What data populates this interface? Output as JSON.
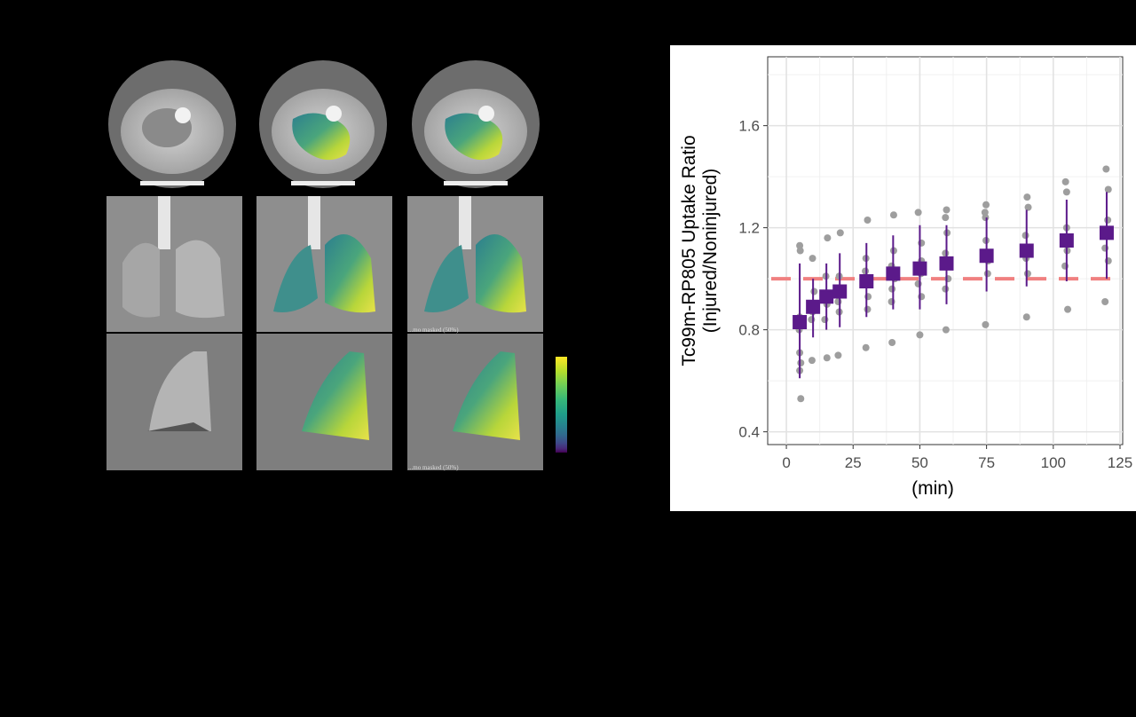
{
  "figure": {
    "mask_labels": [
      "...mo masked (50%)",
      "...mo masked (50%)"
    ],
    "colorbar_colors": [
      "#440154",
      "#3e4989",
      "#26828e",
      "#35b779",
      "#b5de2b",
      "#fde725"
    ]
  },
  "chart_data": {
    "type": "scatter",
    "title": "",
    "xlabel": "(min)",
    "ylabel_line1": "Tc99m-RP805 Uptake Ratio",
    "ylabel_line2": "(Injured/Noninjured)",
    "xlim": [
      -7,
      126
    ],
    "ylim": [
      0.35,
      1.87
    ],
    "x_ticks": [
      0,
      25,
      50,
      75,
      100,
      125
    ],
    "y_ticks": [
      0.4,
      0.8,
      1.2,
      1.6
    ],
    "y_tick_labels": [
      "0.4",
      "0.8",
      "1.2",
      "1.6"
    ],
    "reference_line": {
      "y": 1.0,
      "color": "#f08080",
      "style": "dashed"
    },
    "grid": true,
    "series": [
      {
        "kind": "mean_sd",
        "color": "#5b1a8a",
        "points": [
          {
            "x": 5,
            "mean": 0.83,
            "low": 0.61,
            "high": 1.06
          },
          {
            "x": 10,
            "mean": 0.89,
            "low": 0.77,
            "high": 1.0
          },
          {
            "x": 15,
            "mean": 0.93,
            "low": 0.8,
            "high": 1.06
          },
          {
            "x": 20,
            "mean": 0.95,
            "low": 0.81,
            "high": 1.1
          },
          {
            "x": 30,
            "mean": 0.99,
            "low": 0.85,
            "high": 1.14
          },
          {
            "x": 40,
            "mean": 1.02,
            "low": 0.88,
            "high": 1.17
          },
          {
            "x": 50,
            "mean": 1.04,
            "low": 0.88,
            "high": 1.21
          },
          {
            "x": 60,
            "mean": 1.06,
            "low": 0.9,
            "high": 1.21
          },
          {
            "x": 75,
            "mean": 1.09,
            "low": 0.95,
            "high": 1.24
          },
          {
            "x": 90,
            "mean": 1.11,
            "low": 0.97,
            "high": 1.27
          },
          {
            "x": 105,
            "mean": 1.15,
            "low": 0.99,
            "high": 1.31
          },
          {
            "x": 120,
            "mean": 1.18,
            "low": 1.0,
            "high": 1.34
          }
        ]
      },
      {
        "kind": "individual",
        "color": "#9e9e9e",
        "points": [
          {
            "x": 5,
            "y": 0.53
          },
          {
            "x": 5,
            "y": 0.64
          },
          {
            "x": 5,
            "y": 0.67
          },
          {
            "x": 5,
            "y": 0.71
          },
          {
            "x": 5,
            "y": 0.8
          },
          {
            "x": 5,
            "y": 0.85
          },
          {
            "x": 5,
            "y": 1.11
          },
          {
            "x": 5,
            "y": 1.13
          },
          {
            "x": 10,
            "y": 0.68
          },
          {
            "x": 10,
            "y": 0.84
          },
          {
            "x": 10,
            "y": 0.87
          },
          {
            "x": 10,
            "y": 0.9
          },
          {
            "x": 10,
            "y": 0.95
          },
          {
            "x": 10,
            "y": 1.08
          },
          {
            "x": 15,
            "y": 0.69
          },
          {
            "x": 15,
            "y": 0.84
          },
          {
            "x": 15,
            "y": 0.9
          },
          {
            "x": 15,
            "y": 0.94
          },
          {
            "x": 15,
            "y": 1.01
          },
          {
            "x": 15,
            "y": 1.16
          },
          {
            "x": 20,
            "y": 0.7
          },
          {
            "x": 20,
            "y": 0.87
          },
          {
            "x": 20,
            "y": 0.91
          },
          {
            "x": 20,
            "y": 0.96
          },
          {
            "x": 20,
            "y": 1.01
          },
          {
            "x": 20,
            "y": 1.18
          },
          {
            "x": 30,
            "y": 0.73
          },
          {
            "x": 30,
            "y": 0.88
          },
          {
            "x": 30,
            "y": 0.93
          },
          {
            "x": 30,
            "y": 0.98
          },
          {
            "x": 30,
            "y": 1.03
          },
          {
            "x": 30,
            "y": 1.08
          },
          {
            "x": 30,
            "y": 1.23
          },
          {
            "x": 40,
            "y": 0.75
          },
          {
            "x": 40,
            "y": 0.91
          },
          {
            "x": 40,
            "y": 0.96
          },
          {
            "x": 40,
            "y": 1.0
          },
          {
            "x": 40,
            "y": 1.05
          },
          {
            "x": 40,
            "y": 1.11
          },
          {
            "x": 40,
            "y": 1.25
          },
          {
            "x": 50,
            "y": 0.78
          },
          {
            "x": 50,
            "y": 0.93
          },
          {
            "x": 50,
            "y": 0.98
          },
          {
            "x": 50,
            "y": 1.02
          },
          {
            "x": 50,
            "y": 1.07
          },
          {
            "x": 50,
            "y": 1.14
          },
          {
            "x": 50,
            "y": 1.26
          },
          {
            "x": 60,
            "y": 0.8
          },
          {
            "x": 60,
            "y": 0.96
          },
          {
            "x": 60,
            "y": 1.0
          },
          {
            "x": 60,
            "y": 1.05
          },
          {
            "x": 60,
            "y": 1.1
          },
          {
            "x": 60,
            "y": 1.18
          },
          {
            "x": 60,
            "y": 1.24
          },
          {
            "x": 60,
            "y": 1.27
          },
          {
            "x": 75,
            "y": 0.82
          },
          {
            "x": 75,
            "y": 1.02
          },
          {
            "x": 75,
            "y": 1.07
          },
          {
            "x": 75,
            "y": 1.1
          },
          {
            "x": 75,
            "y": 1.15
          },
          {
            "x": 75,
            "y": 1.24
          },
          {
            "x": 75,
            "y": 1.26
          },
          {
            "x": 75,
            "y": 1.29
          },
          {
            "x": 90,
            "y": 0.85
          },
          {
            "x": 90,
            "y": 1.02
          },
          {
            "x": 90,
            "y": 1.08
          },
          {
            "x": 90,
            "y": 1.12
          },
          {
            "x": 90,
            "y": 1.17
          },
          {
            "x": 90,
            "y": 1.28
          },
          {
            "x": 90,
            "y": 1.32
          },
          {
            "x": 105,
            "y": 0.88
          },
          {
            "x": 105,
            "y": 1.05
          },
          {
            "x": 105,
            "y": 1.11
          },
          {
            "x": 105,
            "y": 1.15
          },
          {
            "x": 105,
            "y": 1.2
          },
          {
            "x": 105,
            "y": 1.34
          },
          {
            "x": 105,
            "y": 1.38
          },
          {
            "x": 120,
            "y": 0.91
          },
          {
            "x": 120,
            "y": 1.07
          },
          {
            "x": 120,
            "y": 1.12
          },
          {
            "x": 120,
            "y": 1.18
          },
          {
            "x": 120,
            "y": 1.23
          },
          {
            "x": 120,
            "y": 1.35
          },
          {
            "x": 120,
            "y": 1.43
          }
        ]
      }
    ]
  }
}
